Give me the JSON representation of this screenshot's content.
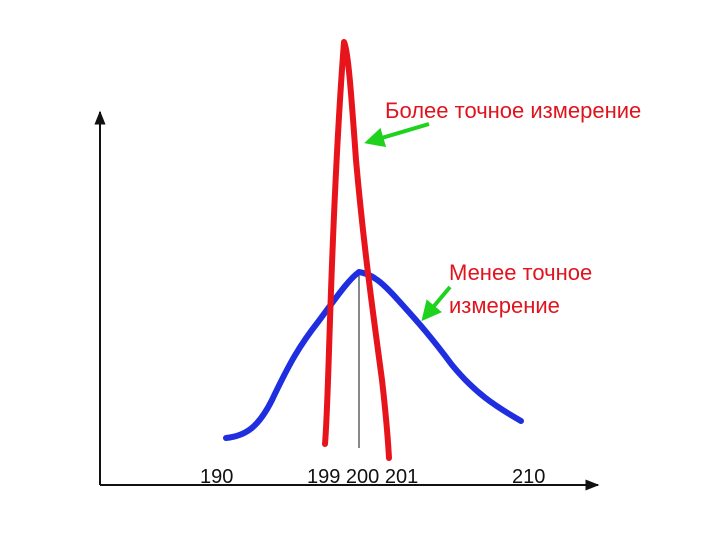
{
  "diagram": {
    "x_tick_labels": [
      "190",
      "199 200 201",
      "210"
    ],
    "annotations": {
      "precise": "Более точное измерение",
      "less_precise_line1": "Менее точное",
      "less_precise_line2": "измерение"
    },
    "colors": {
      "precise_curve": "#e8141c",
      "less_precise_curve": "#1f2fe0",
      "arrows": "#1ed21e",
      "annotation_text": "#e0141e",
      "axes": "#111111"
    }
  }
}
